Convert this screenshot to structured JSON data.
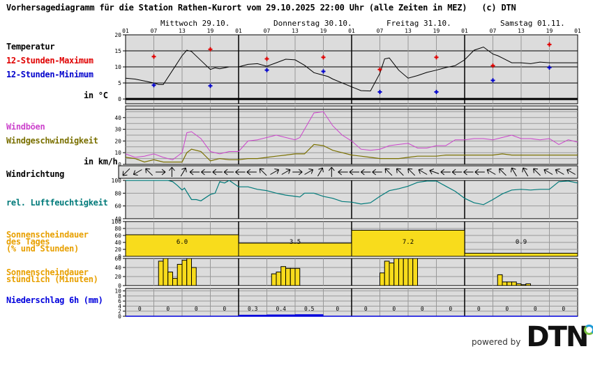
{
  "header": {
    "title": "Vorhersagediagramm für die Station Rathen-Kurort vom 29.10.2025 22:00 Uhr (alle Zeiten in MEZ)   (c) DTN",
    "days": [
      "Mittwoch 29.10.",
      "Donnerstag 30.10.",
      "Freitag 31.10.",
      "Samstag 01.11."
    ],
    "hour_ticks": [
      "01",
      "07",
      "13",
      "19",
      "01",
      "07",
      "13",
      "19",
      "01",
      "07",
      "13",
      "19",
      "01",
      "07",
      "13",
      "19",
      "01"
    ]
  },
  "labels": {
    "temperature": "Temperatur",
    "max": "12-Stunden-Maximum",
    "min": "12-Stunden-Minimum",
    "temp_unit": "in °C",
    "gusts": "Windböen",
    "wind_speed": "Windgeschwindigkeit",
    "wind_unit": "in km/h",
    "wind_dir": "Windrichtung",
    "humidity": "rel. Luftfeuchtigkeit",
    "sun_daily_1": "Sonnenscheindauer",
    "sun_daily_2": "des Tages",
    "sun_daily_3": "(% und Stunden)",
    "sun_hourly_1": "Sonnenscheindauer",
    "sun_hourly_2": "stündlich (Minuten)",
    "precip": "Niederschlag 6h (mm)"
  },
  "colors": {
    "max": "#e00000",
    "min": "#0000cc",
    "gusts": "#cc44cc",
    "wind_speed": "#7a7000",
    "humidity": "#007a7a",
    "sun_label": "#e8a000",
    "sun_fill": "#f8dc1c",
    "precip": "#0000dd",
    "plot_bg": "#dcdcdc"
  },
  "footer": {
    "powered_by": "powered by",
    "brand": "DTN"
  },
  "chart_data": [
    {
      "type": "line",
      "title": "Temperatur",
      "ylabel": "in °C",
      "ylim": [
        0,
        20
      ],
      "yticks": [
        0,
        5,
        10,
        15,
        20
      ],
      "x_hours_from_start": "0..96 (29.10. 01:00 to 02.11. 01:00)",
      "series": [
        {
          "name": "Temperatur",
          "x": [
            0,
            2,
            4,
            6,
            7,
            8,
            10,
            12,
            13,
            14,
            16,
            18,
            19,
            20,
            22,
            24,
            26,
            28,
            30,
            32,
            34,
            36,
            38,
            40,
            42,
            43,
            44,
            46,
            48,
            50,
            52,
            54,
            55,
            56,
            58,
            60,
            62,
            64,
            66,
            68,
            70,
            72,
            74,
            76,
            78,
            79,
            80,
            82,
            84,
            86,
            88,
            90,
            92,
            94,
            96
          ],
          "y": [
            6.5,
            6.2,
            5.6,
            5.0,
            4.5,
            4.5,
            9,
            13.5,
            15.2,
            14.8,
            12,
            9.2,
            9.7,
            9.4,
            10,
            10,
            10.8,
            11,
            10.2,
            11.3,
            12.4,
            12.2,
            10.5,
            8.2,
            7.4,
            7.0,
            6.2,
            5.0,
            3.8,
            2.6,
            2.5,
            8,
            12.5,
            12.8,
            9,
            6.5,
            7.3,
            8.3,
            9,
            9.8,
            10.4,
            12.2,
            15.2,
            16.2,
            14,
            13.5,
            12.8,
            11.3,
            11.3,
            11.0,
            11.5,
            11.3,
            11.3,
            11.3,
            11.3
          ]
        },
        {
          "name": "12-Stunden-Maximum",
          "x": [
            6,
            18,
            30,
            42,
            54,
            66,
            78,
            90
          ],
          "y": [
            13.2,
            15.5,
            12.5,
            13.0,
            9.2,
            13.0,
            10.4,
            17.0
          ]
        },
        {
          "name": "12-Stunden-Minimum",
          "x": [
            6,
            18,
            30,
            42,
            54,
            66,
            78,
            90
          ],
          "y": [
            4.3,
            4.1,
            9.0,
            8.6,
            2.2,
            2.2,
            5.8,
            9.8
          ]
        }
      ]
    },
    {
      "type": "line",
      "title": "Wind",
      "ylabel": "in km/h",
      "ylim": [
        0,
        50
      ],
      "yticks": [
        0,
        10,
        20,
        30,
        40
      ],
      "series": [
        {
          "name": "Windböen",
          "x": [
            0,
            2,
            4,
            6,
            8,
            10,
            12,
            13,
            14,
            16,
            18,
            20,
            22,
            24,
            26,
            28,
            30,
            32,
            34,
            36,
            37,
            38,
            40,
            42,
            44,
            46,
            48,
            50,
            52,
            54,
            56,
            58,
            60,
            62,
            64,
            66,
            68,
            70,
            72,
            74,
            76,
            78,
            80,
            82,
            84,
            86,
            88,
            90,
            92,
            94,
            96
          ],
          "y": [
            9,
            6,
            7,
            9,
            6,
            4,
            10,
            27,
            28,
            22,
            11,
            9,
            11,
            11,
            20,
            21,
            23,
            25,
            23,
            21,
            23,
            30,
            44,
            45,
            33,
            25,
            20,
            13,
            12,
            13,
            16,
            17,
            18,
            14,
            14,
            16,
            16,
            21,
            21,
            22,
            22,
            21,
            23,
            25,
            22,
            22,
            21,
            22,
            17,
            21,
            19
          ]
        },
        {
          "name": "Windgeschwindigkeit",
          "x": [
            0,
            2,
            4,
            6,
            8,
            10,
            12,
            13,
            14,
            16,
            18,
            20,
            22,
            24,
            26,
            28,
            30,
            32,
            34,
            36,
            38,
            40,
            42,
            44,
            46,
            48,
            50,
            52,
            54,
            56,
            58,
            60,
            62,
            64,
            66,
            68,
            70,
            72,
            74,
            76,
            78,
            80,
            82,
            84,
            86,
            88,
            90,
            92,
            94,
            96
          ],
          "y": [
            6,
            5,
            2,
            4,
            2,
            2,
            2,
            10,
            13,
            11,
            3,
            5,
            4,
            4,
            5,
            5,
            6,
            7,
            8,
            9,
            9,
            17,
            16,
            12,
            10,
            8,
            7,
            6,
            5,
            5,
            5,
            6,
            7,
            7,
            7,
            8,
            8,
            8,
            8,
            8,
            8,
            9,
            8,
            8,
            8,
            8,
            8,
            8,
            8,
            8
          ]
        }
      ]
    },
    {
      "type": "table",
      "title": "Windrichtung",
      "note": "arrows every ~2h; predominantly easterly/south-easterly (arrows pointing W / NW)",
      "arrows_deg": [
        225,
        240,
        315,
        90,
        0,
        30,
        270,
        270,
        270,
        270,
        270,
        270,
        315,
        60,
        60,
        90,
        60,
        30,
        0,
        270,
        270,
        270,
        270,
        315,
        315,
        315,
        300,
        290,
        270,
        270,
        270,
        270,
        300,
        315,
        330,
        330,
        315,
        300,
        300,
        300
      ]
    },
    {
      "type": "line",
      "title": "rel. Luftfeuchtigkeit",
      "ylim": [
        40,
        100
      ],
      "yticks": [
        40,
        60,
        80,
        100
      ],
      "series": [
        {
          "name": "rel. Luftfeuchtigkeit",
          "x": [
            0,
            6,
            9,
            10,
            11,
            12,
            12.5,
            14,
            15,
            16,
            18,
            19,
            20,
            21,
            22,
            24,
            26,
            28,
            30,
            32,
            34,
            36,
            37,
            38,
            40,
            42,
            44,
            46,
            48,
            50,
            52,
            54,
            56,
            58,
            60,
            62,
            64,
            66,
            68,
            70,
            72,
            74,
            76,
            78,
            80,
            82,
            84,
            86,
            88,
            90,
            92,
            94,
            96
          ],
          "y": [
            100,
            100,
            100,
            98,
            92,
            85,
            88,
            70,
            70,
            68,
            78,
            80,
            98,
            96,
            100,
            90,
            90,
            86,
            84,
            80,
            77,
            75,
            74,
            80,
            80,
            75,
            72,
            67,
            66,
            63,
            65,
            75,
            84,
            87,
            91,
            97,
            99,
            99,
            91,
            83,
            72,
            65,
            62,
            70,
            79,
            85,
            86,
            85,
            86,
            86,
            98,
            99,
            96
          ]
        }
      ]
    },
    {
      "type": "bar",
      "title": "Sonnenscheindauer des Tages (% und Stunden)",
      "ylim": [
        0,
        100
      ],
      "yticks": [
        0,
        20,
        40,
        60,
        80,
        100
      ],
      "categories": [
        "29.10.",
        "30.10.",
        "31.10.",
        "01.11."
      ],
      "values_percent": [
        62,
        38,
        75,
        9
      ],
      "values_hours": [
        6.0,
        3.5,
        7.2,
        0.9
      ]
    },
    {
      "type": "bar",
      "title": "Sonnenscheindauer stündlich (Minuten)",
      "ylim": [
        0,
        60
      ],
      "yticks": [
        0,
        20,
        40,
        60
      ],
      "hours": [
        "29.10. 08",
        "09",
        "10",
        "11",
        "12",
        "13",
        "14",
        "15",
        "30.10. 08",
        "09",
        "10",
        "11",
        "12",
        "13",
        "31.10. 07",
        "08",
        "09",
        "10",
        "11",
        "12",
        "13",
        "14",
        "01.11. 08",
        "09",
        "10",
        "11",
        "12",
        "13",
        "14"
      ],
      "values": [
        54,
        60,
        30,
        16,
        47,
        56,
        60,
        40,
        26,
        30,
        42,
        38,
        38,
        38,
        28,
        54,
        50,
        60,
        60,
        60,
        60,
        60,
        24,
        8,
        8,
        8,
        4,
        2,
        4
      ]
    },
    {
      "type": "bar",
      "title": "Niederschlag 6h (mm)",
      "ylim": [
        0,
        10
      ],
      "yticks": [
        0,
        2,
        4,
        6,
        8,
        10
      ],
      "categories": [
        "29.10. 01-07",
        "07-13",
        "13-19",
        "19-01",
        "30.10. 01-07",
        "07-13",
        "13-19",
        "19-01",
        "31.10. 01-07",
        "07-13",
        "13-19",
        "19-01",
        "01.11. 01-07",
        "07-13",
        "13-19",
        "19-01"
      ],
      "values": [
        0,
        0,
        0,
        0,
        0.3,
        0.4,
        0.5,
        0,
        0,
        0,
        0,
        0,
        0,
        0,
        0,
        0
      ],
      "value_labels": [
        "0",
        "0",
        "0",
        "0",
        "0.3",
        "0.4",
        "0.5",
        "0",
        "0",
        "0",
        "0",
        "0",
        "0",
        "0",
        "0",
        "0"
      ]
    }
  ]
}
